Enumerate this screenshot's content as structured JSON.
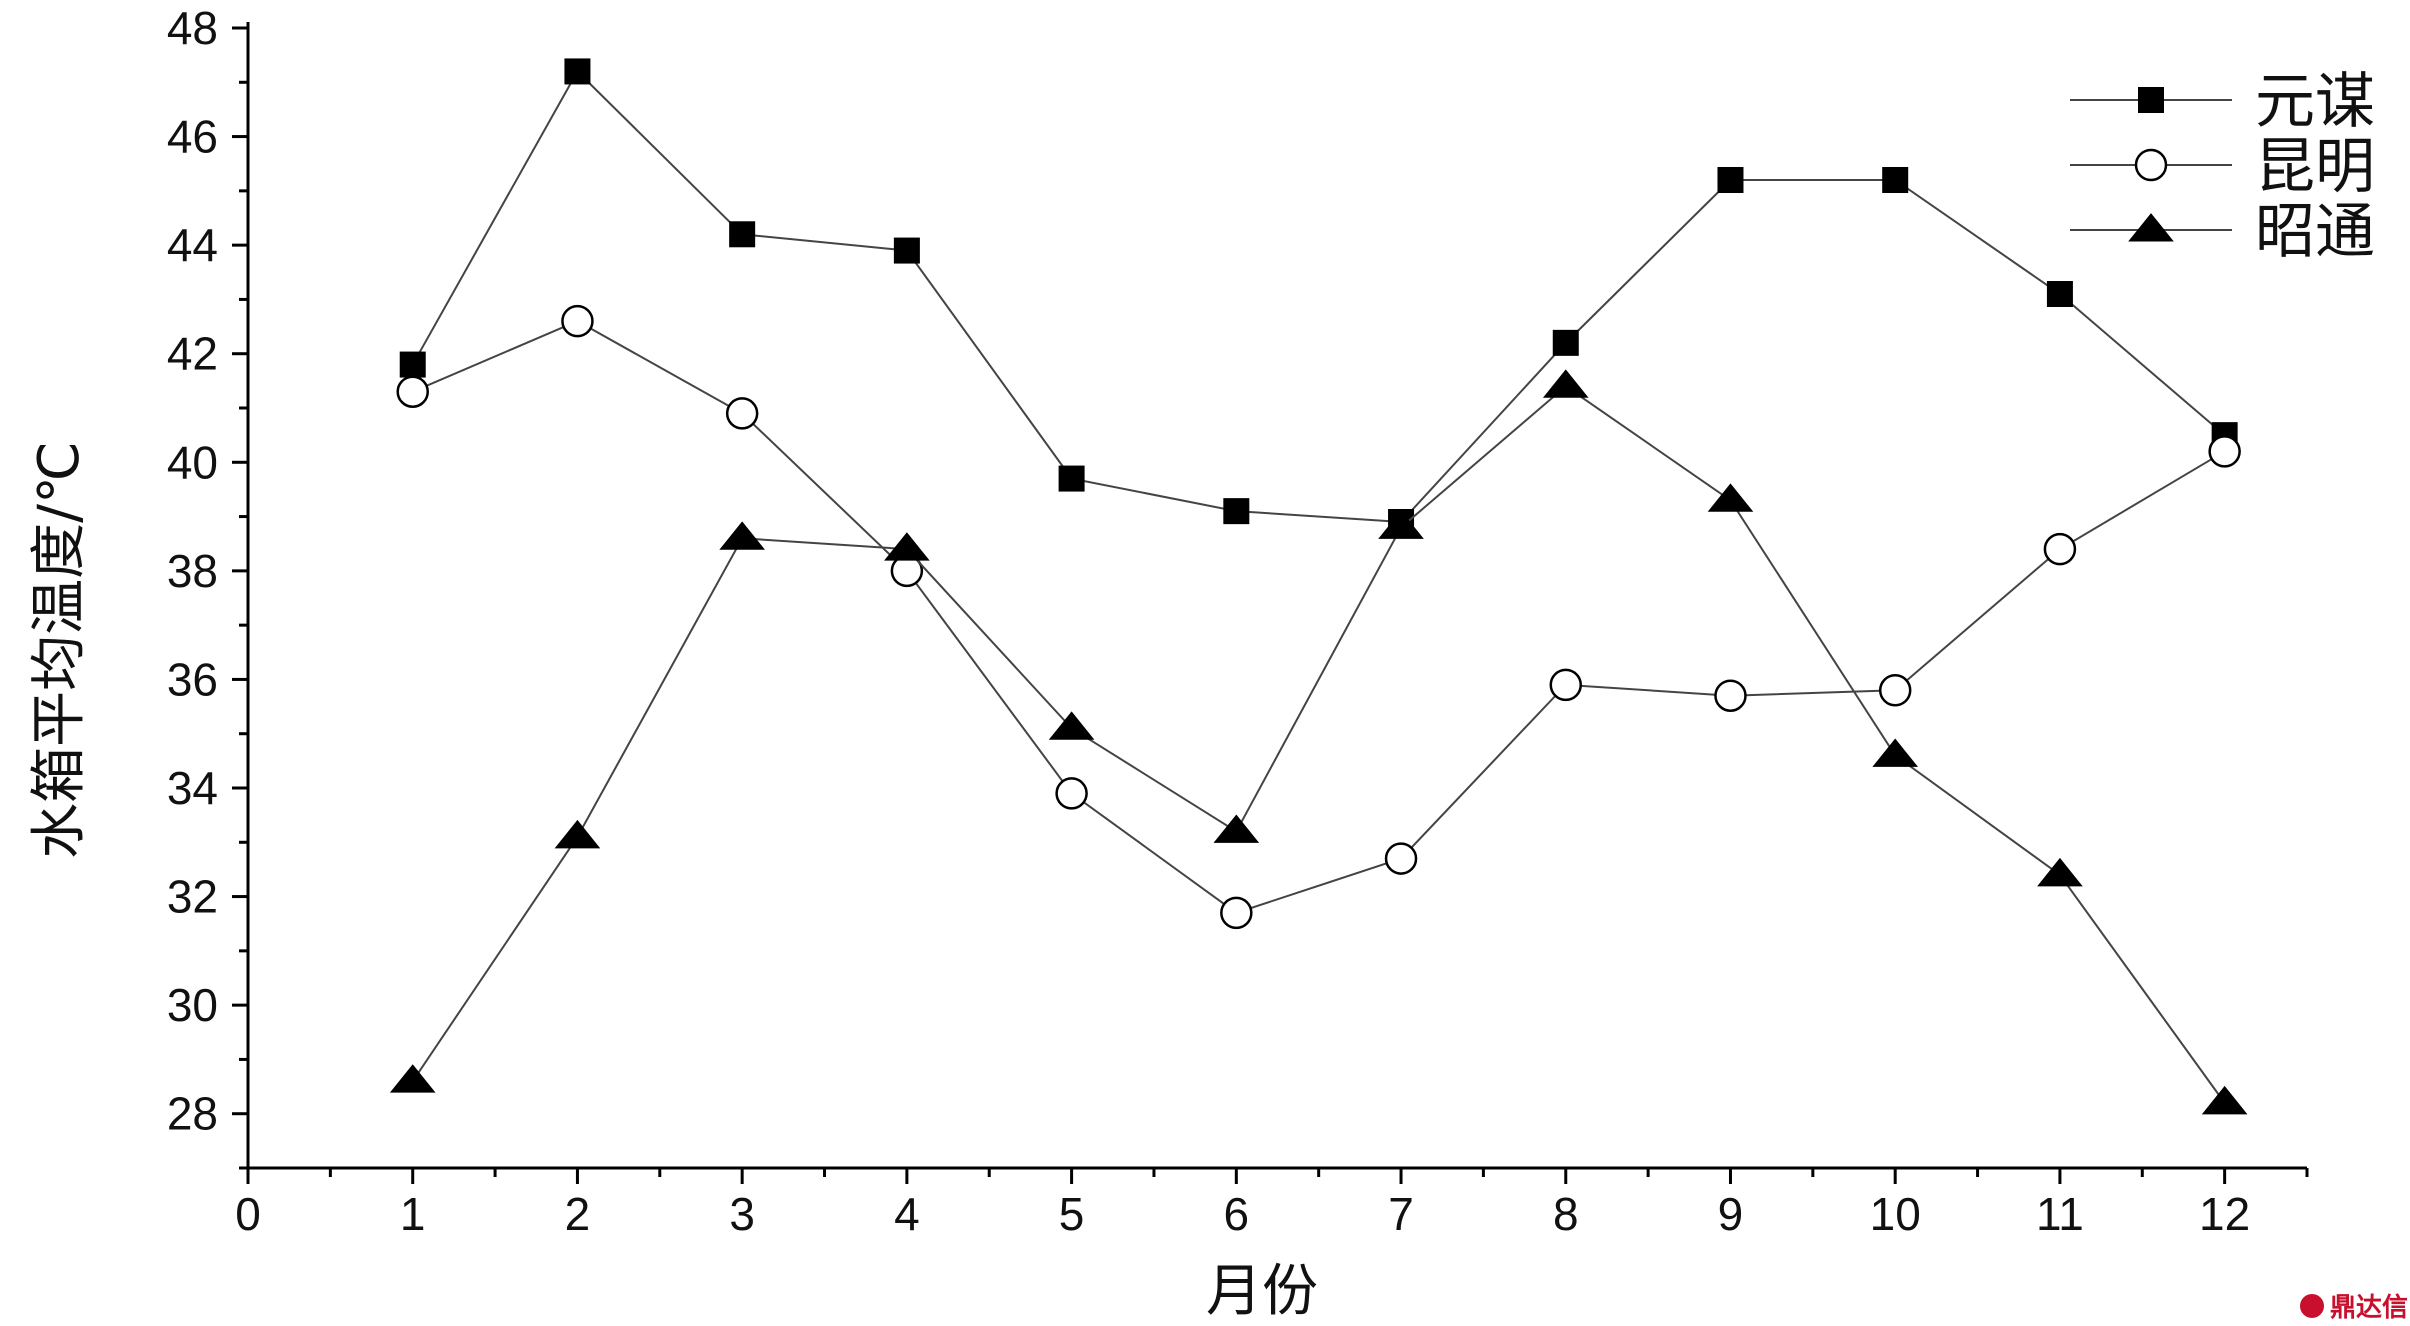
{
  "chart_data": {
    "type": "line",
    "xlabel": "月份",
    "ylabel": "水箱平均温度/℃",
    "xlim": [
      0,
      12.5
    ],
    "ylim": [
      27,
      48
    ],
    "x_ticks": [
      0,
      1,
      2,
      3,
      4,
      5,
      6,
      7,
      8,
      9,
      10,
      11,
      12
    ],
    "y_ticks": [
      28,
      30,
      32,
      34,
      36,
      38,
      40,
      42,
      44,
      46,
      48
    ],
    "x": [
      1,
      2,
      3,
      4,
      5,
      6,
      7,
      8,
      9,
      10,
      11,
      12
    ],
    "grid": false,
    "legend_position": "top-right",
    "series": [
      {
        "name": "元谋",
        "marker": "filled-square",
        "color": "#000000",
        "values": [
          41.8,
          47.2,
          44.2,
          43.9,
          39.7,
          39.1,
          38.9,
          42.2,
          45.2,
          45.2,
          43.1,
          40.5
        ]
      },
      {
        "name": "昆明",
        "marker": "open-circle",
        "color": "#000000",
        "values": [
          41.3,
          42.6,
          40.9,
          38.0,
          33.9,
          31.7,
          32.7,
          35.9,
          35.7,
          35.8,
          38.4,
          40.2
        ]
      },
      {
        "name": "昭通",
        "marker": "filled-triangle",
        "color": "#000000",
        "values": [
          28.6,
          33.1,
          38.6,
          38.4,
          35.1,
          33.2,
          38.8,
          41.4,
          39.3,
          34.6,
          32.4,
          28.2
        ]
      }
    ]
  },
  "watermark": {
    "text": "鼎达信"
  }
}
